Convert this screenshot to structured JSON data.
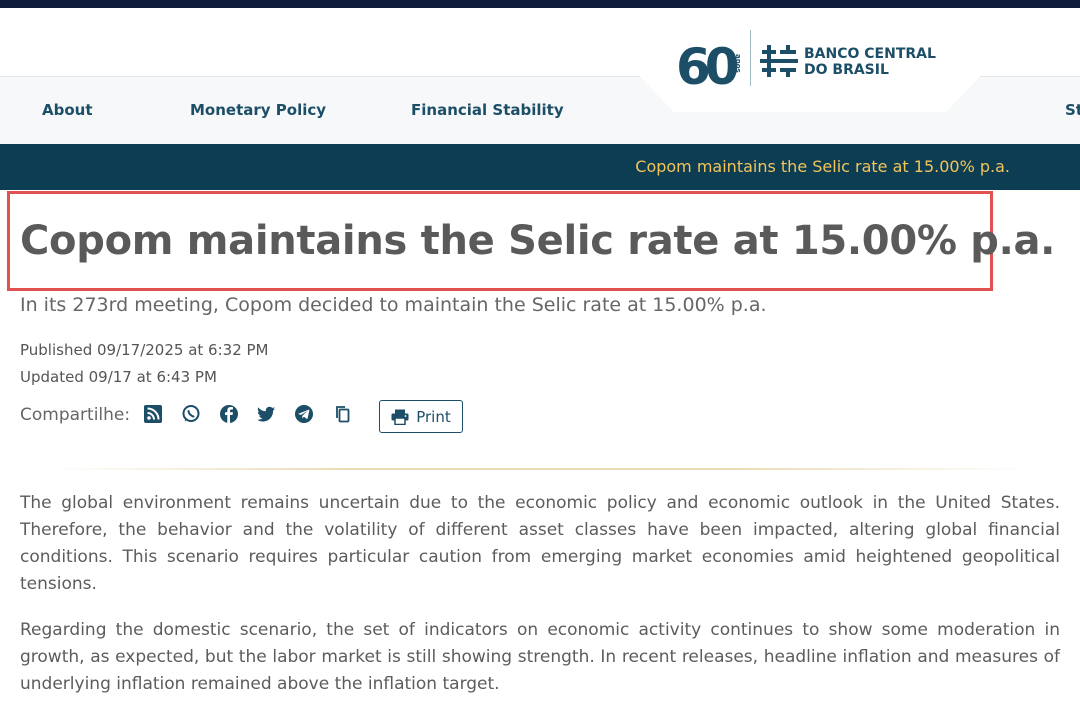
{
  "nav": {
    "items": [
      {
        "label": "About"
      },
      {
        "label": "Monetary Policy"
      },
      {
        "label": "Financial Stability"
      },
      {
        "label": "St"
      }
    ]
  },
  "logo": {
    "anniversary_number": "60",
    "anniversary_word": "anos",
    "name_line1": "BANCO CENTRAL",
    "name_line2": "DO BRASIL"
  },
  "ticker": {
    "text": "Copom maintains the Selic rate at 15.00% p.a."
  },
  "article": {
    "title": "Copom maintains the Selic rate at 15.00% p.a.",
    "subtitle": "In its 273rd meeting, Copom decided to maintain the Selic rate at 15.00% p.a.",
    "published": "Published 09/17/2025 at 6:32 PM",
    "updated": "Updated 09/17 at 6:43 PM",
    "share_label": "Compartilhe:",
    "print_label": "Print",
    "paragraphs": [
      "The global environment remains uncertain due to the economic policy and economic outlook in the United States. Therefore, the behavior and the volatility of different asset classes have been impacted, altering global financial conditions. This scenario requires particular caution from emerging market economies amid heightened geopolitical tensions.",
      "Regarding the domestic scenario, the set of indicators on economic activity continues to show some moderation in growth, as expected, but the labor market is still showing strength. In recent releases, headline inflation and measures of underlying inflation remained above the inflation target."
    ]
  },
  "icons": [
    "rss-icon",
    "whatsapp-icon",
    "facebook-icon",
    "twitter-icon",
    "telegram-icon",
    "copy-icon",
    "printer-icon"
  ],
  "colors": {
    "brand": "#1d4e67",
    "ticker_bg": "#0d3d52",
    "ticker_text": "#f2c45c",
    "highlight": "#e0524f"
  }
}
